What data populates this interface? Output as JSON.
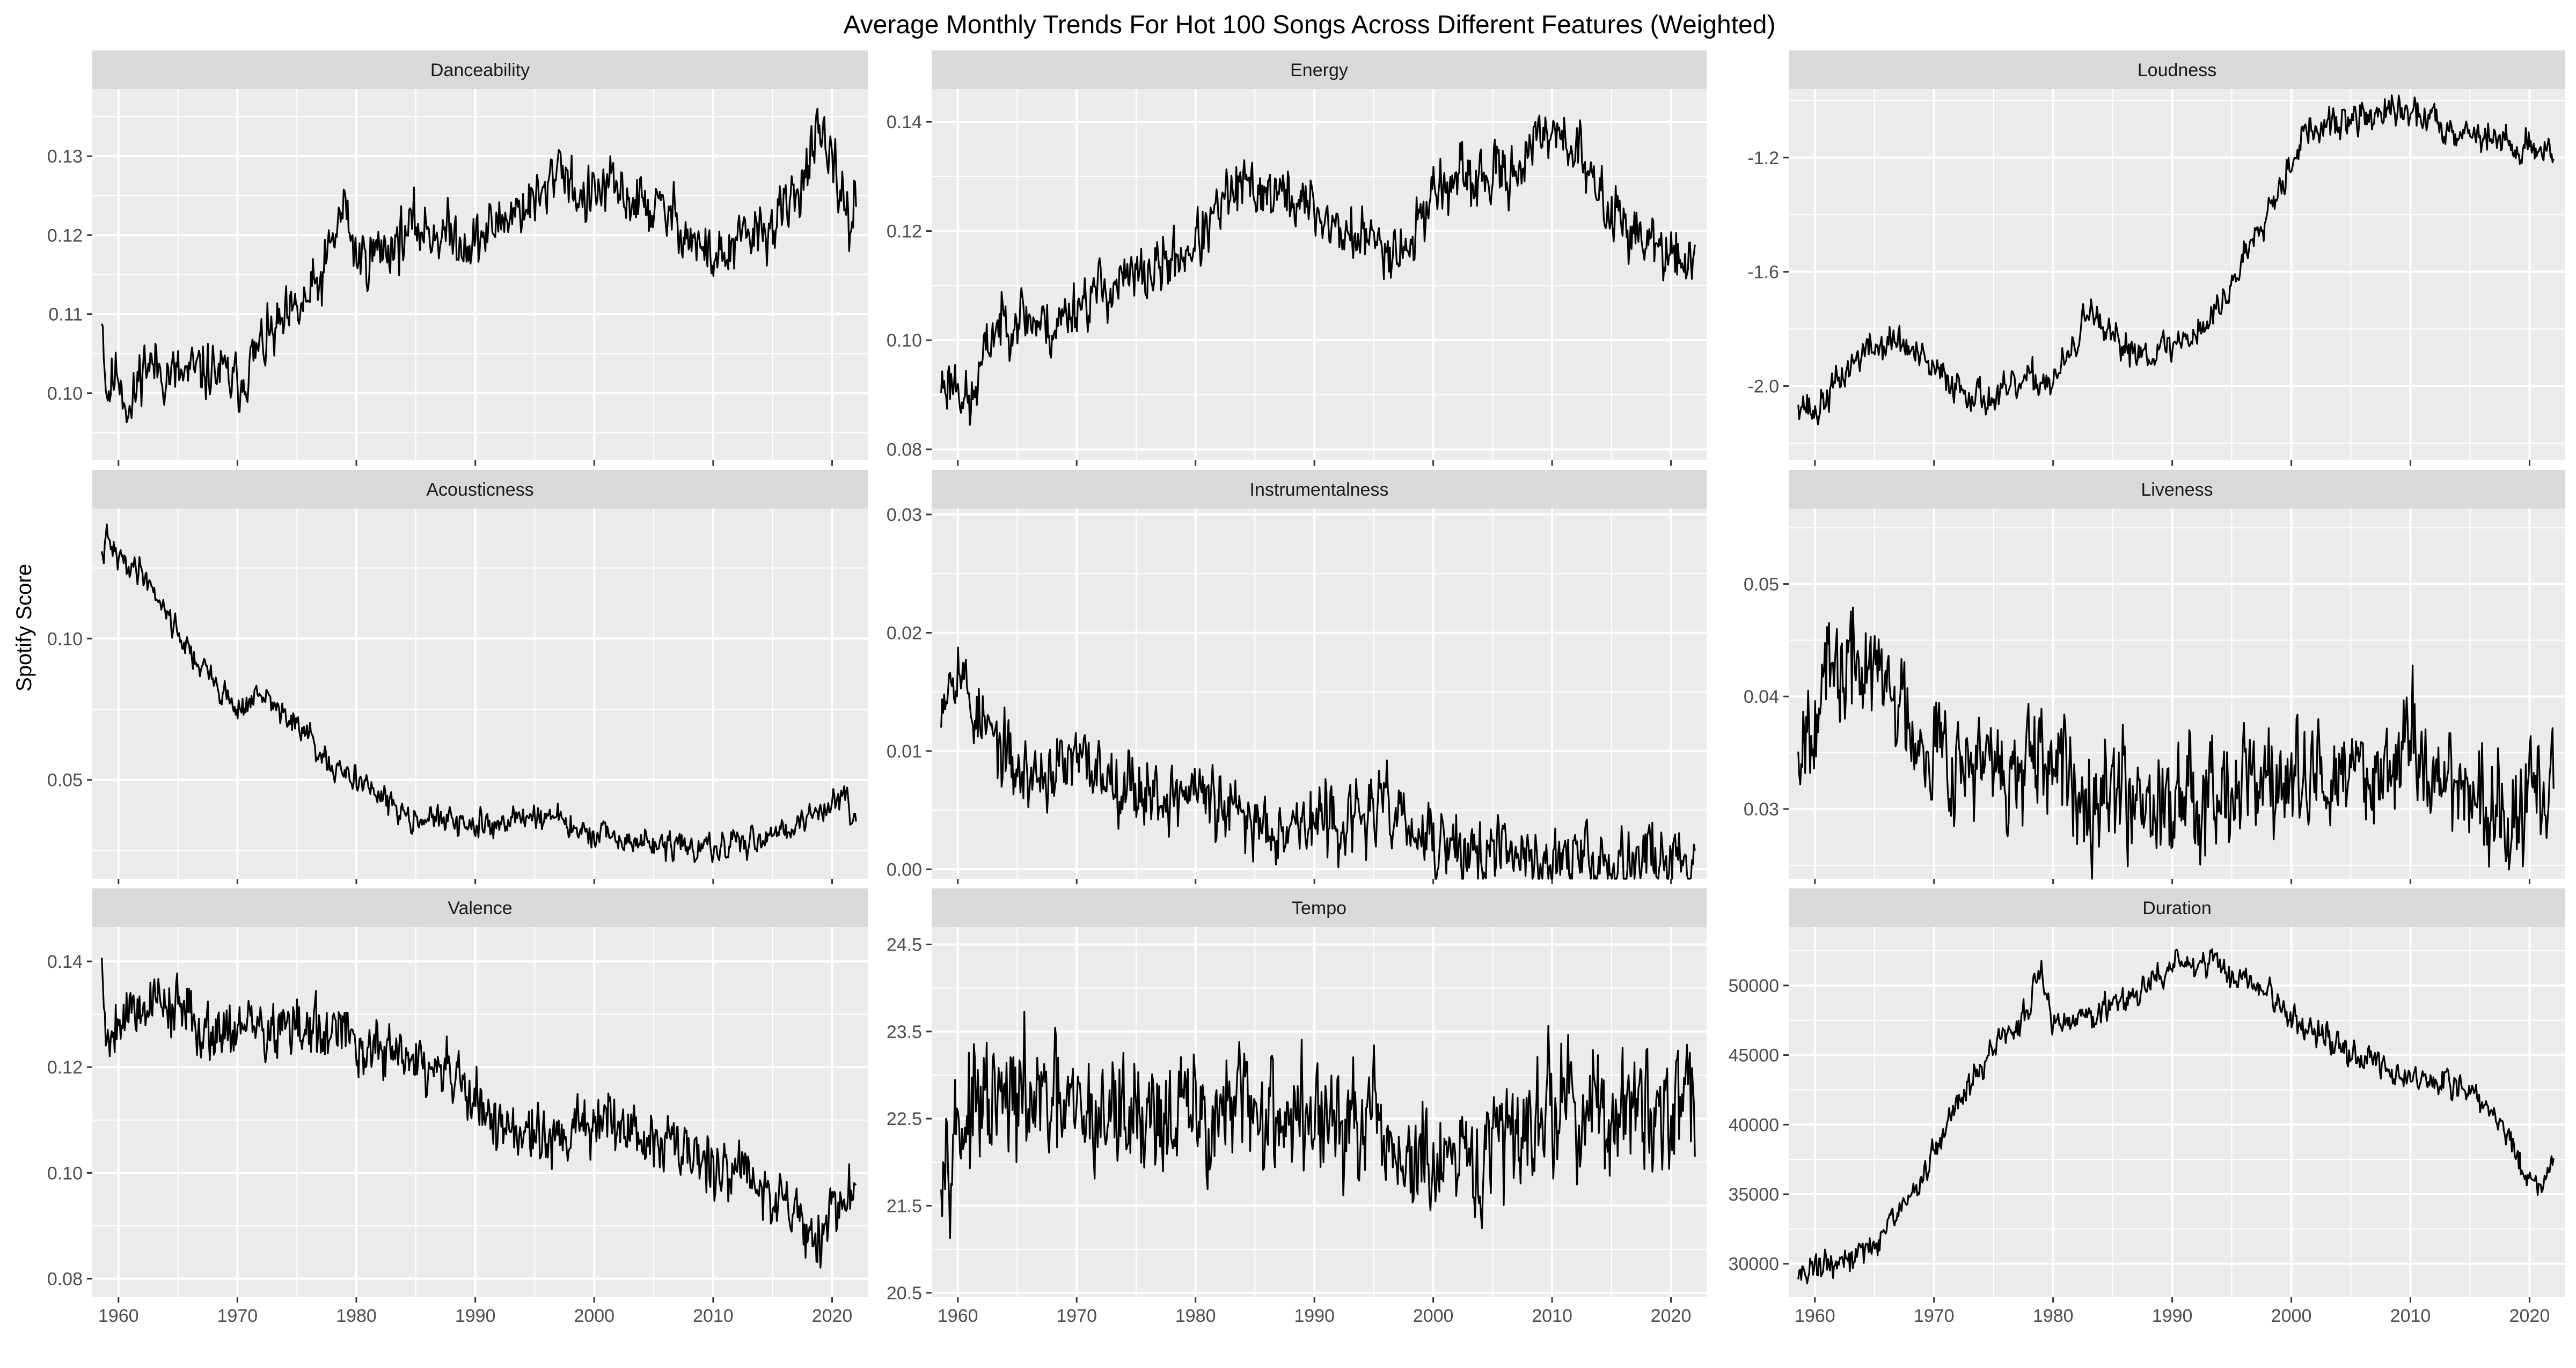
{
  "chart_data": {
    "type": "line",
    "title": "Average Monthly Trends For Hot 100 Songs Across Different Features (Weighted)",
    "ylabel": "Spotify Score",
    "xlabel": "",
    "x_range": [
      1958.6,
      2022.0
    ],
    "x_ticks": [
      1960,
      1970,
      1980,
      1990,
      2000,
      2010,
      2020
    ],
    "grid": true,
    "panels": [
      {
        "name": "Danceability",
        "ylim": [
          0.0915,
          0.1385
        ],
        "y_ticks": [
          0.1,
          0.11,
          0.12,
          0.13
        ],
        "y_tick_labels": [
          "0.10",
          "0.11",
          "0.12",
          "0.13"
        ],
        "anchors": [
          [
            1958.6,
            0.111
          ],
          [
            1959,
            0.1
          ],
          [
            1960,
            0.103
          ],
          [
            1961,
            0.097
          ],
          [
            1962,
            0.104
          ],
          [
            1965,
            0.102
          ],
          [
            1968,
            0.103
          ],
          [
            1970,
            0.101
          ],
          [
            1972,
            0.106
          ],
          [
            1975,
            0.11
          ],
          [
            1977,
            0.114
          ],
          [
            1979,
            0.124
          ],
          [
            1980,
            0.117
          ],
          [
            1982,
            0.118
          ],
          [
            1985,
            0.121
          ],
          [
            1988,
            0.12
          ],
          [
            1990,
            0.119
          ],
          [
            1993,
            0.123
          ],
          [
            1996,
            0.125
          ],
          [
            1997,
            0.13
          ],
          [
            1999,
            0.124
          ],
          [
            2001,
            0.126
          ],
          [
            2004,
            0.124
          ],
          [
            2007,
            0.122
          ],
          [
            2009,
            0.118
          ],
          [
            2011,
            0.117
          ],
          [
            2013,
            0.12
          ],
          [
            2015,
            0.121
          ],
          [
            2017,
            0.125
          ],
          [
            2018,
            0.13
          ],
          [
            2019,
            0.132
          ],
          [
            2020,
            0.128
          ],
          [
            2021,
            0.125
          ],
          [
            2021.5,
            0.121
          ],
          [
            2022,
            0.124
          ]
        ],
        "noise": 0.0022,
        "seed": 11
      },
      {
        "name": "Energy",
        "ylim": [
          0.078,
          0.146
        ],
        "y_ticks": [
          0.08,
          0.1,
          0.12,
          0.14
        ],
        "y_tick_labels": [
          "0.08",
          "0.10",
          "0.12",
          "0.14"
        ],
        "anchors": [
          [
            1958.6,
            0.092
          ],
          [
            1960,
            0.093
          ],
          [
            1961,
            0.087
          ],
          [
            1962,
            0.095
          ],
          [
            1963,
            0.102
          ],
          [
            1965,
            0.105
          ],
          [
            1968,
            0.102
          ],
          [
            1970,
            0.107
          ],
          [
            1973,
            0.11
          ],
          [
            1976,
            0.112
          ],
          [
            1979,
            0.116
          ],
          [
            1981,
            0.12
          ],
          [
            1983,
            0.127
          ],
          [
            1985,
            0.128
          ],
          [
            1988,
            0.126
          ],
          [
            1990,
            0.124
          ],
          [
            1992,
            0.12
          ],
          [
            1995,
            0.118
          ],
          [
            1998,
            0.117
          ],
          [
            2000,
            0.128
          ],
          [
            2003,
            0.129
          ],
          [
            2006,
            0.13
          ],
          [
            2009,
            0.136
          ],
          [
            2010,
            0.14
          ],
          [
            2012,
            0.135
          ],
          [
            2014,
            0.126
          ],
          [
            2016,
            0.122
          ],
          [
            2018,
            0.118
          ],
          [
            2020,
            0.115
          ],
          [
            2021,
            0.114
          ],
          [
            2022,
            0.118
          ]
        ],
        "noise": 0.0032,
        "seed": 23
      },
      {
        "name": "Loudness",
        "ylim": [
          -2.26,
          -0.96
        ],
        "y_ticks": [
          -2.0,
          -1.6,
          -1.2
        ],
        "y_tick_labels": [
          "-2.0",
          "-1.6",
          "-1.2"
        ],
        "anchors": [
          [
            1958.6,
            -2.04
          ],
          [
            1960,
            -2.1
          ],
          [
            1962,
            -1.98
          ],
          [
            1964,
            -1.88
          ],
          [
            1967,
            -1.84
          ],
          [
            1970,
            -1.95
          ],
          [
            1973,
            -2.02
          ],
          [
            1975,
            -2.05
          ],
          [
            1978,
            -1.98
          ],
          [
            1980,
            -1.98
          ],
          [
            1982,
            -1.86
          ],
          [
            1983,
            -1.7
          ],
          [
            1984,
            -1.82
          ],
          [
            1986,
            -1.86
          ],
          [
            1988,
            -1.88
          ],
          [
            1990,
            -1.86
          ],
          [
            1993,
            -1.78
          ],
          [
            1995,
            -1.65
          ],
          [
            1997,
            -1.45
          ],
          [
            1999,
            -1.3
          ],
          [
            2001,
            -1.12
          ],
          [
            2004,
            -1.08
          ],
          [
            2007,
            -1.05
          ],
          [
            2009,
            -1.04
          ],
          [
            2011,
            -1.05
          ],
          [
            2013,
            -1.09
          ],
          [
            2016,
            -1.12
          ],
          [
            2018,
            -1.15
          ],
          [
            2020,
            -1.17
          ],
          [
            2022,
            -1.16
          ]
        ],
        "noise": 0.035,
        "seed": 37
      },
      {
        "name": "Acousticness",
        "ylim": [
          0.015,
          0.146
        ],
        "y_ticks": [
          0.05,
          0.1
        ],
        "y_tick_labels": [
          "0.05",
          "0.10"
        ],
        "anchors": [
          [
            1958.6,
            0.128
          ],
          [
            1959,
            0.135
          ],
          [
            1960,
            0.128
          ],
          [
            1962,
            0.124
          ],
          [
            1964,
            0.11
          ],
          [
            1966,
            0.095
          ],
          [
            1968,
            0.085
          ],
          [
            1970,
            0.075
          ],
          [
            1972,
            0.08
          ],
          [
            1974,
            0.073
          ],
          [
            1976,
            0.065
          ],
          [
            1978,
            0.052
          ],
          [
            1980,
            0.052
          ],
          [
            1982,
            0.043
          ],
          [
            1985,
            0.037
          ],
          [
            1988,
            0.035
          ],
          [
            1990,
            0.033
          ],
          [
            1993,
            0.036
          ],
          [
            1996,
            0.038
          ],
          [
            1998,
            0.033
          ],
          [
            2000,
            0.03
          ],
          [
            2003,
            0.028
          ],
          [
            2006,
            0.027
          ],
          [
            2008,
            0.026
          ],
          [
            2010,
            0.025
          ],
          [
            2012,
            0.027
          ],
          [
            2014,
            0.03
          ],
          [
            2016,
            0.033
          ],
          [
            2018,
            0.036
          ],
          [
            2020,
            0.042
          ],
          [
            2021,
            0.046
          ],
          [
            2022,
            0.036
          ]
        ],
        "noise": 0.0028,
        "seed": 41
      },
      {
        "name": "Instrumentalness",
        "ylim": [
          -0.0008,
          0.0305
        ],
        "y_ticks": [
          0.0,
          0.01,
          0.02,
          0.03
        ],
        "y_tick_labels": [
          "0.00",
          "0.01",
          "0.02",
          "0.03"
        ],
        "anchors": [
          [
            1958.6,
            0.015
          ],
          [
            1960,
            0.018
          ],
          [
            1961,
            0.014
          ],
          [
            1963,
            0.011
          ],
          [
            1965,
            0.008
          ],
          [
            1967,
            0.008
          ],
          [
            1970,
            0.009
          ],
          [
            1973,
            0.008
          ],
          [
            1975,
            0.007
          ],
          [
            1978,
            0.006
          ],
          [
            1980,
            0.007
          ],
          [
            1982,
            0.005
          ],
          [
            1985,
            0.004
          ],
          [
            1988,
            0.004
          ],
          [
            1990,
            0.004
          ],
          [
            1993,
            0.004
          ],
          [
            1995,
            0.005
          ],
          [
            1997,
            0.005
          ],
          [
            1998,
            0.003
          ],
          [
            2000,
            0.002
          ],
          [
            2003,
            0.0015
          ],
          [
            2006,
            0.0012
          ],
          [
            2010,
            0.0008
          ],
          [
            2015,
            0.0008
          ],
          [
            2020,
            0.0012
          ],
          [
            2022,
            0.0005
          ]
        ],
        "noise": 0.0018,
        "seed": 53
      },
      {
        "name": "Liveness",
        "ylim": [
          0.0238,
          0.0567
        ],
        "y_ticks": [
          0.03,
          0.04,
          0.05
        ],
        "y_tick_labels": [
          "0.03",
          "0.04",
          "0.05"
        ],
        "anchors": [
          [
            1958.6,
            0.036
          ],
          [
            1960,
            0.04
          ],
          [
            1962,
            0.042
          ],
          [
            1964,
            0.043
          ],
          [
            1966,
            0.041
          ],
          [
            1968,
            0.038
          ],
          [
            1970,
            0.036
          ],
          [
            1973,
            0.034
          ],
          [
            1976,
            0.033
          ],
          [
            1980,
            0.033
          ],
          [
            1985,
            0.032
          ],
          [
            1990,
            0.031
          ],
          [
            1995,
            0.033
          ],
          [
            2000,
            0.032
          ],
          [
            2005,
            0.033
          ],
          [
            2008,
            0.034
          ],
          [
            2010,
            0.036
          ],
          [
            2012,
            0.033
          ],
          [
            2015,
            0.032
          ],
          [
            2017,
            0.029
          ],
          [
            2019,
            0.029
          ],
          [
            2021,
            0.032
          ],
          [
            2022,
            0.031
          ]
        ],
        "noise": 0.003,
        "seed": 67
      },
      {
        "name": "Valence",
        "ylim": [
          0.0765,
          0.1465
        ],
        "y_ticks": [
          0.08,
          0.1,
          0.12,
          0.14
        ],
        "y_tick_labels": [
          "0.08",
          "0.10",
          "0.12",
          "0.14"
        ],
        "anchors": [
          [
            1958.6,
            0.14
          ],
          [
            1959,
            0.125
          ],
          [
            1960,
            0.13
          ],
          [
            1962,
            0.132
          ],
          [
            1964,
            0.133
          ],
          [
            1966,
            0.129
          ],
          [
            1968,
            0.127
          ],
          [
            1970,
            0.128
          ],
          [
            1972,
            0.127
          ],
          [
            1975,
            0.127
          ],
          [
            1978,
            0.126
          ],
          [
            1980,
            0.125
          ],
          [
            1982,
            0.123
          ],
          [
            1985,
            0.121
          ],
          [
            1988,
            0.118
          ],
          [
            1990,
            0.113
          ],
          [
            1993,
            0.108
          ],
          [
            1996,
            0.106
          ],
          [
            1999,
            0.108
          ],
          [
            2001,
            0.11
          ],
          [
            2003,
            0.109
          ],
          [
            2005,
            0.106
          ],
          [
            2008,
            0.104
          ],
          [
            2010,
            0.102
          ],
          [
            2012,
            0.101
          ],
          [
            2014,
            0.099
          ],
          [
            2016,
            0.094
          ],
          [
            2018,
            0.09
          ],
          [
            2019,
            0.088
          ],
          [
            2020,
            0.093
          ],
          [
            2022,
            0.096
          ]
        ],
        "noise": 0.0035,
        "seed": 79
      },
      {
        "name": "Tempo",
        "ylim": [
          20.45,
          24.7
        ],
        "y_ticks": [
          20.5,
          21.5,
          22.5,
          23.5,
          24.5
        ],
        "y_tick_labels": [
          "20.5",
          "21.5",
          "22.5",
          "23.5",
          "24.5"
        ],
        "anchors": [
          [
            1958.6,
            22.3
          ],
          [
            1962,
            22.6
          ],
          [
            1966,
            22.7
          ],
          [
            1970,
            22.5
          ],
          [
            1975,
            22.6
          ],
          [
            1980,
            22.5
          ],
          [
            1985,
            22.6
          ],
          [
            1990,
            22.5
          ],
          [
            1995,
            22.3
          ],
          [
            1998,
            22.0
          ],
          [
            2000,
            21.9
          ],
          [
            2002,
            21.8
          ],
          [
            2004,
            22.0
          ],
          [
            2007,
            22.4
          ],
          [
            2010,
            22.7
          ],
          [
            2013,
            22.6
          ],
          [
            2016,
            22.5
          ],
          [
            2019,
            22.6
          ],
          [
            2022,
            22.9
          ]
        ],
        "noise": 0.42,
        "seed": 97
      },
      {
        "name": "Duration",
        "ylim": [
          27600,
          54200
        ],
        "y_ticks": [
          30000,
          35000,
          40000,
          45000,
          50000
        ],
        "y_tick_labels": [
          "30000",
          "35000",
          "40000",
          "45000",
          "50000"
        ],
        "anchors": [
          [
            1958.6,
            29400
          ],
          [
            1960,
            29800
          ],
          [
            1962,
            30000
          ],
          [
            1965,
            31500
          ],
          [
            1967,
            33500
          ],
          [
            1969,
            36000
          ],
          [
            1971,
            40000
          ],
          [
            1973,
            43000
          ],
          [
            1975,
            45500
          ],
          [
            1977,
            47000
          ],
          [
            1978,
            49000
          ],
          [
            1979,
            51000
          ],
          [
            1980,
            47500
          ],
          [
            1982,
            47500
          ],
          [
            1985,
            48500
          ],
          [
            1988,
            50000
          ],
          [
            1990,
            51500
          ],
          [
            1993,
            51500
          ],
          [
            1996,
            50500
          ],
          [
            1998,
            49500
          ],
          [
            2000,
            47500
          ],
          [
            2003,
            46000
          ],
          [
            2006,
            44500
          ],
          [
            2008,
            44000
          ],
          [
            2010,
            43500
          ],
          [
            2012,
            43300
          ],
          [
            2014,
            43000
          ],
          [
            2016,
            41500
          ],
          [
            2018,
            39500
          ],
          [
            2019,
            37500
          ],
          [
            2020,
            36000
          ],
          [
            2021,
            35500
          ],
          [
            2022,
            37500
          ]
        ],
        "noise": 600,
        "seed": 131
      }
    ]
  }
}
